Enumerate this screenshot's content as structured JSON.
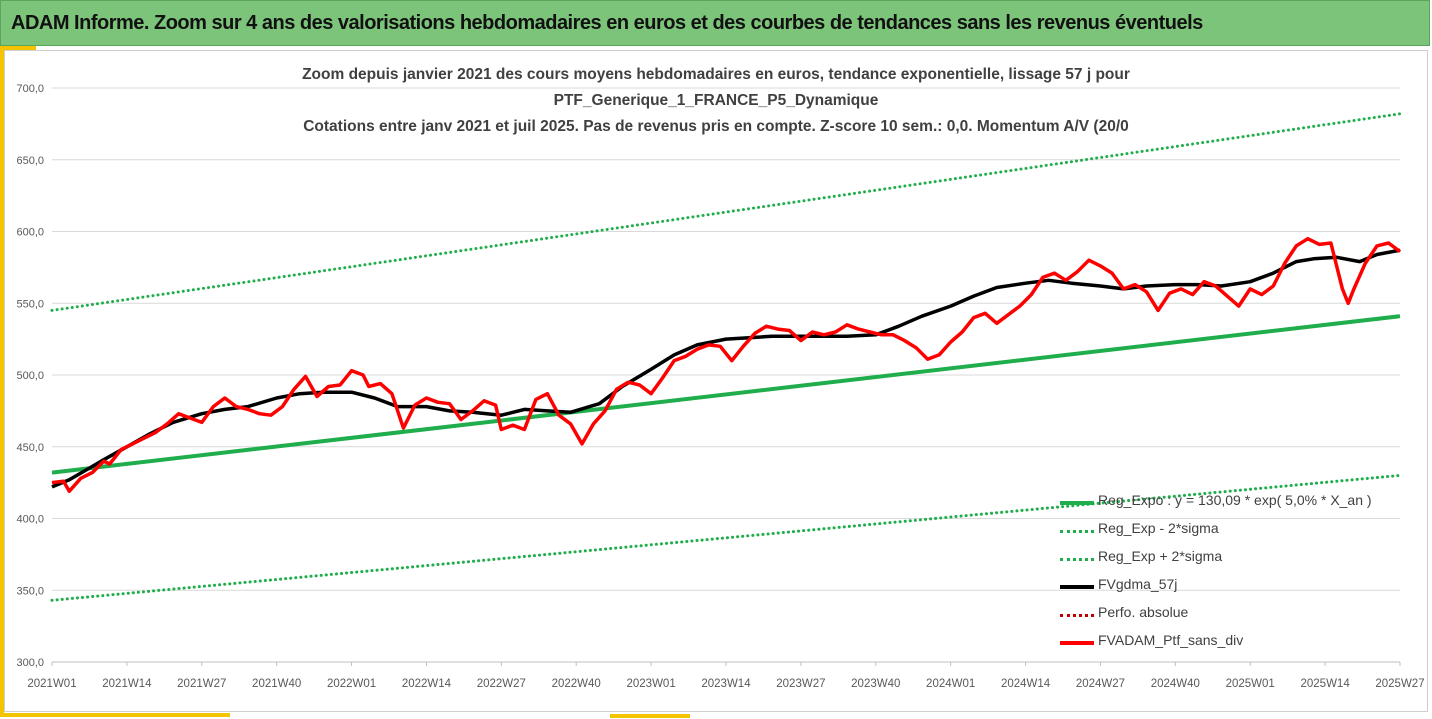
{
  "banner": {
    "title": "ADAM Informe. Zoom sur 4 ans des valorisations hebdomadaires en euros et des courbes de tendances sans les revenus éventuels"
  },
  "chart_data": {
    "type": "line",
    "title_lines": [
      "Zoom depuis janvier 2021 des cours moyens hebdomadaires  en euros, tendance exponentielle, lissage 57 j pour",
      "PTF_Generique_1_FRANCE_P5_Dynamique",
      "Cotations entre janv 2021 et juil 2025. Pas de revenus pris en compte. Z-score 10 sem.: 0,0. Momentum A/V (20/0"
    ],
    "ylim": [
      300,
      700
    ],
    "y_ticks": [
      "300,0",
      "350,0",
      "400,0",
      "450,0",
      "500,0",
      "550,0",
      "600,0",
      "650,0",
      "700,0"
    ],
    "x_tick_labels": [
      "2021W01",
      "2021W14",
      "2021W27",
      "2021W40",
      "2022W01",
      "2022W14",
      "2022W27",
      "2022W40",
      "2023W01",
      "2023W14",
      "2023W27",
      "2023W40",
      "2024W01",
      "2024W14",
      "2024W27",
      "2024W40",
      "2025W01",
      "2025W14",
      "2025W27"
    ],
    "x_range_weeks": [
      0,
      234
    ],
    "grid": "horizontal",
    "legend_position": "bottom-right",
    "colors": {
      "reg_expo": "#1fae4b",
      "fvgdma": "#000000",
      "perfo": "#c00000",
      "fvadam": "#ff0000"
    },
    "series": [
      {
        "name": "Reg_Expo : y = 130,09 * exp( 5,0% *  X_an )",
        "style": "solid",
        "color": "#1fae4b",
        "x": [
          0,
          234
        ],
        "y": [
          432,
          541
        ]
      },
      {
        "name": "Reg_Exp - 2*sigma",
        "style": "dotted",
        "color": "#1fae4b",
        "x": [
          0,
          234
        ],
        "y": [
          343,
          430
        ]
      },
      {
        "name": "Reg_Exp + 2*sigma",
        "style": "dotted",
        "color": "#1fae4b",
        "x": [
          0,
          234
        ],
        "y": [
          545,
          682
        ]
      },
      {
        "name": "FVgdma_57j",
        "style": "solid",
        "color": "#000000",
        "x": [
          0,
          3,
          6,
          9,
          13,
          17,
          21,
          26,
          30,
          34,
          39,
          43,
          47,
          52,
          56,
          60,
          65,
          69,
          73,
          78,
          82,
          86,
          90,
          95,
          99,
          104,
          108,
          112,
          117,
          121,
          125,
          130,
          134,
          138,
          143,
          147,
          151,
          156,
          160,
          164,
          169,
          173,
          177,
          182,
          186,
          190,
          195,
          199,
          203,
          208,
          212,
          216,
          219,
          223,
          227,
          230,
          234
        ],
        "y": [
          422,
          427,
          434,
          441,
          450,
          459,
          467,
          473,
          476,
          478,
          484,
          487,
          488,
          488,
          484,
          478,
          478,
          475,
          474,
          472,
          476,
          475,
          474,
          480,
          492,
          504,
          514,
          521,
          525,
          526,
          527,
          527,
          527,
          527,
          528,
          534,
          541,
          548,
          555,
          561,
          564,
          566,
          564,
          562,
          560,
          562,
          563,
          563,
          562,
          565,
          571,
          579,
          581,
          582,
          579,
          584,
          587
        ]
      },
      {
        "name": "Perfo. absolue",
        "style": "dotted",
        "color": "#c00000",
        "x": [],
        "y": []
      },
      {
        "name": "FVADAM_Ptf_sans_div",
        "style": "solid",
        "color": "#ff0000",
        "x": [
          0,
          2,
          3,
          5,
          7,
          9,
          10,
          12,
          14,
          16,
          18,
          20,
          22,
          24,
          26,
          28,
          30,
          32,
          34,
          36,
          38,
          40,
          42,
          44,
          46,
          48,
          50,
          52,
          54,
          55,
          57,
          59,
          61,
          63,
          65,
          67,
          69,
          71,
          73,
          75,
          77,
          78,
          80,
          82,
          84,
          86,
          88,
          90,
          92,
          94,
          96,
          98,
          100,
          102,
          104,
          106,
          108,
          110,
          112,
          114,
          116,
          118,
          120,
          122,
          124,
          126,
          128,
          130,
          132,
          134,
          136,
          138,
          140,
          142,
          144,
          146,
          148,
          150,
          152,
          154,
          156,
          158,
          160,
          162,
          164,
          166,
          168,
          170,
          172,
          174,
          176,
          178,
          180,
          182,
          184,
          186,
          188,
          190,
          192,
          194,
          196,
          198,
          200,
          202,
          204,
          206,
          208,
          210,
          212,
          214,
          216,
          218,
          220,
          222,
          224,
          225,
          226,
          228,
          230,
          232,
          234
        ],
        "y": [
          425,
          426,
          419,
          428,
          432,
          440,
          438,
          448,
          452,
          456,
          460,
          466,
          473,
          470,
          467,
          478,
          484,
          478,
          476,
          473,
          472,
          478,
          490,
          499,
          485,
          492,
          493,
          503,
          500,
          492,
          494,
          487,
          463,
          479,
          484,
          481,
          480,
          469,
          475,
          482,
          479,
          462,
          465,
          462,
          483,
          487,
          472,
          466,
          452,
          466,
          475,
          490,
          495,
          493,
          487,
          498,
          510,
          513,
          518,
          521,
          520,
          510,
          520,
          529,
          534,
          532,
          531,
          524,
          530,
          528,
          530,
          535,
          532,
          530,
          528,
          528,
          524,
          519,
          511,
          514,
          523,
          530,
          540,
          543,
          536,
          542,
          548,
          556,
          568,
          571,
          566,
          572,
          580,
          576,
          571,
          560,
          563,
          558,
          545,
          557,
          560,
          556,
          565,
          562,
          555,
          548,
          560,
          556,
          562,
          578,
          590,
          595,
          591,
          592,
          560,
          550,
          560,
          578,
          590,
          592,
          586
        ]
      }
    ]
  }
}
